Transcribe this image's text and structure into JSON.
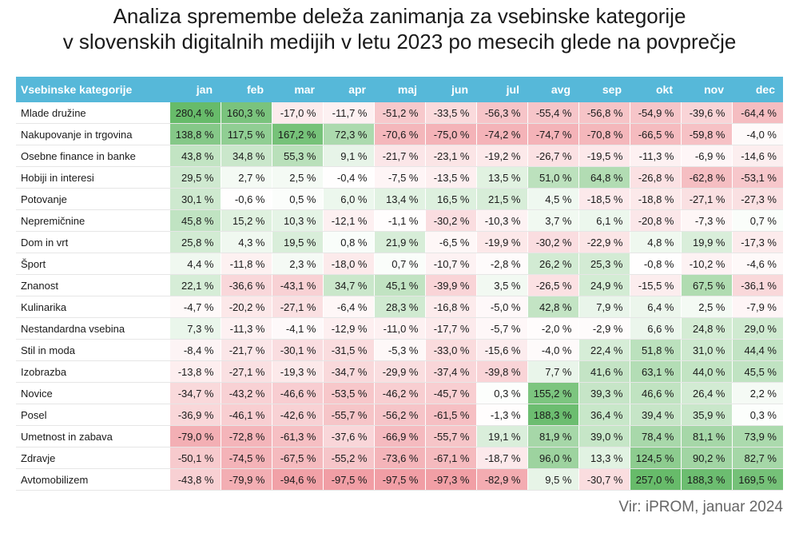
{
  "chart_data": {
    "type": "table",
    "title_line1": "Analiza spremembe deleža zanimanja za vsebinske kategorije",
    "title_line2": "v slovenskih digitalnih medijih v letu 2023 po mesecih glede na povprečje",
    "header_label": "Vsebinske kategorije",
    "months": [
      "jan",
      "feb",
      "mar",
      "apr",
      "maj",
      "jun",
      "jul",
      "avg",
      "sep",
      "okt",
      "nov",
      "dec"
    ],
    "unit": "%",
    "rows": [
      {
        "category": "Mlade družine",
        "values": [
          280.4,
          160.3,
          -17.0,
          -11.7,
          -51.2,
          -33.5,
          -56.3,
          -55.4,
          -56.8,
          -54.9,
          -39.6,
          -64.4
        ]
      },
      {
        "category": "Nakupovanje in trgovina",
        "values": [
          138.8,
          117.5,
          167.2,
          72.3,
          -70.6,
          -75.0,
          -74.2,
          -74.7,
          -70.8,
          -66.5,
          -59.8,
          -4.0
        ]
      },
      {
        "category": "Osebne finance in banke",
        "values": [
          43.8,
          34.8,
          55.3,
          9.1,
          -21.7,
          -23.1,
          -19.2,
          -26.7,
          -19.5,
          -11.3,
          -6.9,
          -14.6
        ]
      },
      {
        "category": "Hobiji in interesi",
        "values": [
          29.5,
          2.7,
          2.5,
          -0.4,
          -7.5,
          -13.5,
          13.5,
          51.0,
          64.8,
          -26.8,
          -62.8,
          -53.1
        ]
      },
      {
        "category": "Potovanje",
        "values": [
          30.1,
          -0.6,
          0.5,
          6.0,
          13.4,
          16.5,
          21.5,
          4.5,
          -18.5,
          -18.8,
          -27.1,
          -27.3
        ]
      },
      {
        "category": "Nepremičnine",
        "values": [
          45.8,
          15.2,
          10.3,
          -12.1,
          -1.1,
          -30.2,
          -10.3,
          3.7,
          6.1,
          -20.8,
          -7.3,
          0.7
        ]
      },
      {
        "category": "Dom in vrt",
        "values": [
          25.8,
          4.3,
          19.5,
          0.8,
          21.9,
          -6.5,
          -19.9,
          -30.2,
          -22.9,
          4.8,
          19.9,
          -17.3
        ]
      },
      {
        "category": "Šport",
        "values": [
          4.4,
          -11.8,
          2.3,
          -18.0,
          0.7,
          -10.7,
          -2.8,
          26.2,
          25.3,
          -0.8,
          -10.2,
          -4.6
        ]
      },
      {
        "category": "Znanost",
        "values": [
          22.1,
          -36.6,
          -43.1,
          34.7,
          45.1,
          -39.9,
          3.5,
          -26.5,
          24.9,
          -15.5,
          67.5,
          -36.1
        ]
      },
      {
        "category": "Kulinarika",
        "values": [
          -4.7,
          -20.2,
          -27.1,
          -6.4,
          28.3,
          -16.8,
          -5.0,
          42.8,
          7.9,
          6.4,
          2.5,
          -7.9
        ]
      },
      {
        "category": "Nestandardna vsebina",
        "values": [
          7.3,
          -11.3,
          -4.1,
          -12.9,
          -11.0,
          -17.7,
          -5.7,
          -2.0,
          -2.9,
          6.6,
          24.8,
          29.0
        ]
      },
      {
        "category": "Stil in moda",
        "values": [
          -8.4,
          -21.7,
          -30.1,
          -31.5,
          -5.3,
          -33.0,
          -15.6,
          -4.0,
          22.4,
          51.8,
          31.0,
          44.4
        ]
      },
      {
        "category": "Izobrazba",
        "values": [
          -13.8,
          -27.1,
          -19.3,
          -34.7,
          -29.9,
          -37.4,
          -39.8,
          7.7,
          41.6,
          63.1,
          44.0,
          45.5
        ]
      },
      {
        "category": "Novice",
        "values": [
          -34.7,
          -43.2,
          -46.6,
          -53.5,
          -46.2,
          -45.7,
          0.3,
          155.2,
          39.3,
          46.6,
          26.4,
          2.2
        ]
      },
      {
        "category": "Posel",
        "values": [
          -36.9,
          -46.1,
          -42.6,
          -55.7,
          -56.2,
          -61.5,
          -1.3,
          188.3,
          36.4,
          39.4,
          35.9,
          0.3
        ]
      },
      {
        "category": "Umetnost in zabava",
        "values": [
          -79.0,
          -72.8,
          -61.3,
          -37.6,
          -66.9,
          -55.7,
          19.1,
          81.9,
          39.0,
          78.4,
          81.1,
          73.9
        ]
      },
      {
        "category": "Zdravje",
        "values": [
          -50.1,
          -74.5,
          -67.5,
          -55.2,
          -73.6,
          -67.1,
          -18.7,
          96.0,
          13.3,
          124.5,
          90.2,
          82.7
        ]
      },
      {
        "category": "Avtomobilizem",
        "values": [
          -43.8,
          -79.9,
          -94.6,
          -97.5,
          -97.5,
          -97.3,
          -82.9,
          9.5,
          -30.7,
          257.0,
          188.3,
          169.5
        ]
      }
    ],
    "source": "Vir: iPROM, januar 2024",
    "colors": {
      "header_bg": "#56b8d9",
      "positive": "#4caf50",
      "negative": "#e8646e",
      "neutral": "#ffffff"
    }
  }
}
